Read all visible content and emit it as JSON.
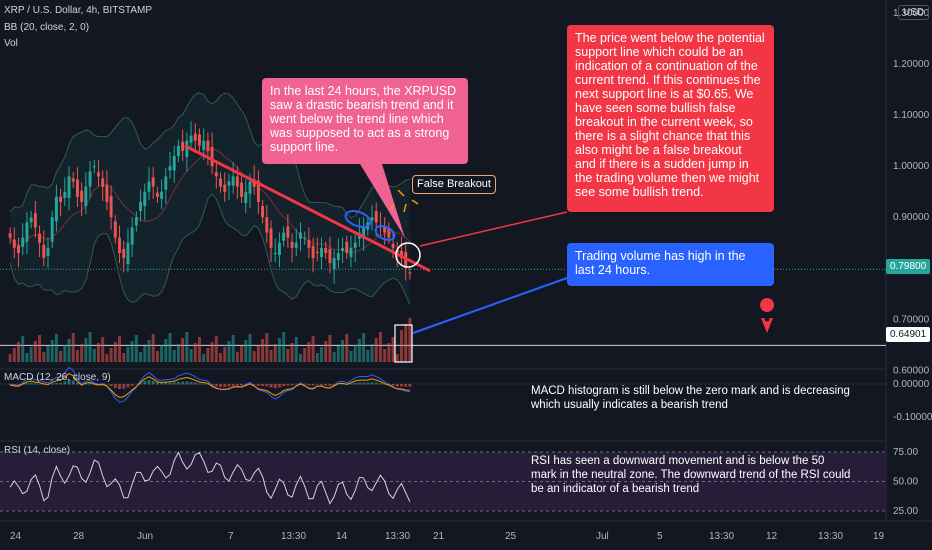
{
  "header": {
    "symbol_line": "XRP / U.S. Dollar, 4h, BITSTAMP",
    "bb_label": "BB (20, close, 2, 0)",
    "vol_label": "Vol",
    "macd_label": "MACD (12, 26, close, 9)",
    "rsi_label": "RSI (14, close)",
    "currency_button": "USD"
  },
  "annotations": {
    "pink_note": "In the last 24 hours, the XRPUSD saw a drastic bearish trend and it went below the trend line which was supposed to act as a strong support line.",
    "red_note": "The price went below the potential support line which could be an indication of a continuation of the current trend. If this continues the next support line is at $0.65. We have seen some bullish false breakout in the current week, so there is a slight chance that this also might be a false breakout and if there is a sudden jump in the trading volume then we might see some bullish trend.",
    "blue_note": "Trading volume has high in the last 24 hours.",
    "false_breakout": "False Breakout",
    "macd_note": "MACD histogram is still below the zero mark and is decreasing which usually indicates a bearish trend",
    "rsi_note": "RSI has seen a downward movement and is below the 50 mark in the neutral zone. The downward trend of the RSI could be an indicator of a bearish trend"
  },
  "colors": {
    "background": "#131722",
    "bull": "#26a69a",
    "bear": "#ef5350",
    "trendline": "#f23645",
    "pink_callout": "#f06292",
    "red_callout": "#f23645",
    "blue_callout": "#2962ff",
    "bollinger": "#2e5d4f",
    "rsi": "#d1d4dc",
    "rsi_band": "#2a1f3d",
    "macd": "#2962ff",
    "signal": "#ff9800",
    "tag_green": "#26a69a"
  },
  "price_tags": {
    "current": "0.79800",
    "support": "0.64901"
  },
  "chart_data": {
    "type": "candlestick",
    "x_tick_labels": [
      "24",
      "28",
      "Jun",
      "7",
      "13:30",
      "14",
      "13:30",
      "21",
      "25",
      "Jul",
      "5",
      "13:30",
      "12",
      "13:30",
      "19"
    ],
    "price_axis": {
      "ticks": [
        "1.30000",
        "1.20000",
        "1.10000",
        "1.00000",
        "0.90000",
        "0.80000",
        "0.70000",
        "0.60000"
      ],
      "range": [
        0.585,
        1.31
      ],
      "current_price": 0.798,
      "support_level": 0.64901
    },
    "price_close_series": [
      0.86,
      0.84,
      0.83,
      0.86,
      0.89,
      0.9,
      0.88,
      0.85,
      0.82,
      0.84,
      0.9,
      0.94,
      0.93,
      0.95,
      0.98,
      0.97,
      0.94,
      0.93,
      0.96,
      0.99,
      1.0,
      0.98,
      0.96,
      0.93,
      0.9,
      0.86,
      0.83,
      0.82,
      0.85,
      0.88,
      0.9,
      0.93,
      0.95,
      0.97,
      0.96,
      0.94,
      0.95,
      0.98,
      1.0,
      1.02,
      1.04,
      1.03,
      1.05,
      1.06,
      1.05,
      1.04,
      1.05,
      1.03,
      1.0,
      0.98,
      0.96,
      0.95,
      0.97,
      0.98,
      0.96,
      0.94,
      0.95,
      0.97,
      0.96,
      0.93,
      0.9,
      0.87,
      0.84,
      0.83,
      0.85,
      0.87,
      0.86,
      0.84,
      0.85,
      0.87,
      0.86,
      0.84,
      0.82,
      0.83,
      0.84,
      0.83,
      0.81,
      0.82,
      0.83,
      0.84,
      0.83,
      0.84,
      0.85,
      0.87,
      0.88,
      0.89,
      0.9,
      0.89,
      0.88,
      0.87,
      0.86,
      0.84,
      0.83,
      0.82,
      0.8,
      0.79
    ],
    "trend_line": {
      "start": [
        0.0,
        1.04
      ],
      "end": [
        1.0,
        0.795
      ]
    },
    "volume_histogram": {
      "style": "bars",
      "last_bar_highlighted": true
    },
    "macd_axis": {
      "ticks": [
        "0.00000",
        "-0.10000"
      ],
      "zero_line": true
    },
    "rsi_axis": {
      "ticks": [
        "75.00",
        "50.00",
        "25.00"
      ],
      "band": [
        25,
        75
      ],
      "midline": 50,
      "last_value": 33
    },
    "legend": "top-left",
    "grid": false
  }
}
